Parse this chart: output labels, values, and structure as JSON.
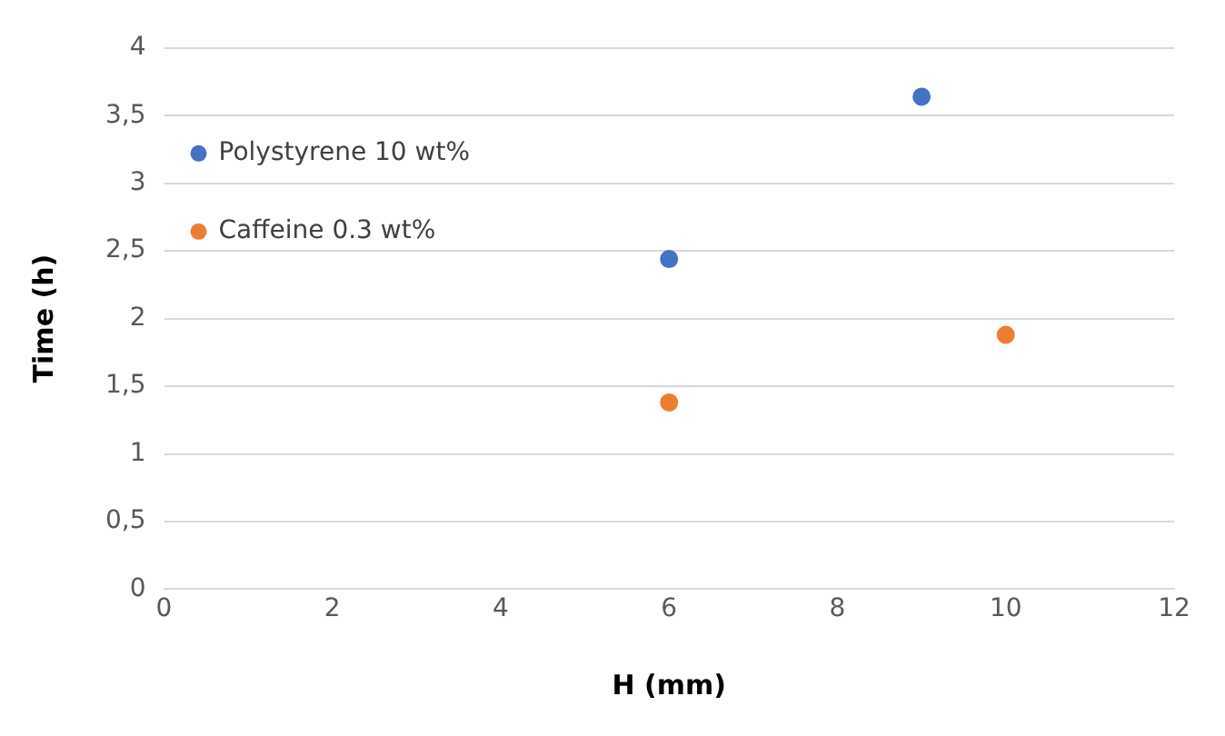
{
  "chart_data": {
    "type": "scatter",
    "xlabel": "H (mm)",
    "ylabel": "Time (h)",
    "series": [
      {
        "name": "Polystyrene 10 wt%",
        "color": "#4472c4",
        "x": [
          6,
          9
        ],
        "values": [
          2.44,
          3.64
        ]
      },
      {
        "name": "Caffeine 0.3 wt%",
        "color": "#ed7d31",
        "x": [
          6,
          10
        ],
        "values": [
          1.38,
          1.88
        ]
      }
    ],
    "xlim": [
      0,
      12
    ],
    "xticks": [
      0,
      2,
      4,
      6,
      8,
      10,
      12
    ],
    "ylim": [
      0,
      4
    ],
    "yticks": [
      0,
      {
        "value": 0.5,
        "label": "0,5"
      },
      1,
      {
        "value": 1.5,
        "label": "1,5"
      },
      2,
      {
        "value": 2.5,
        "label": "2,5"
      },
      3,
      {
        "value": 3.5,
        "label": "3,5"
      },
      4
    ],
    "grid": "y",
    "legend": "top left",
    "marker": "circle"
  }
}
